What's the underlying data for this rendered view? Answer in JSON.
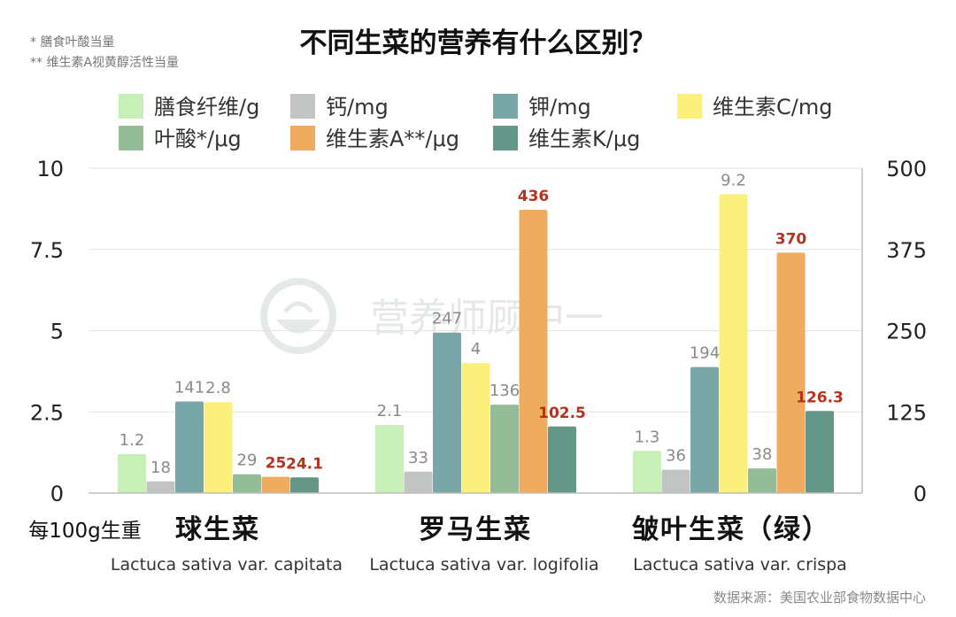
{
  "notes": [
    "* 膳食叶酸当量",
    "** 维生素A视黄醇活性当量"
  ],
  "title": "不同生菜的营养有什么区别？",
  "per_unit_label": "每100g生重",
  "source": "数据来源：美国农业部食物数据中心",
  "watermark": "营养师顾中一",
  "chart_data": {
    "type": "bar",
    "title": "不同生菜的营养有什么区别？",
    "categories": [
      "球生菜",
      "罗马生菜",
      "皱叶生菜（绿）"
    ],
    "category_subtitles": [
      "Lactuca sativa var. capitata",
      "Lactuca sativa var. logifolia",
      "Lactuca sativa var. crispa"
    ],
    "y_left": {
      "ylim": [
        0,
        10
      ],
      "ticks": [
        "0",
        "2.5",
        "5",
        "7.5",
        "10"
      ]
    },
    "y_right": {
      "ylim": [
        0,
        500
      ],
      "ticks": [
        "0",
        "125",
        "250",
        "375",
        "500"
      ]
    },
    "grid": true,
    "legend_position": "top",
    "series": [
      {
        "name": "膳食纤维/g",
        "axis": "left",
        "color": "#c8efb8",
        "label_color": "#8a8a8a",
        "values": [
          1.2,
          2.1,
          1.3
        ],
        "labels": [
          "1.2",
          "2.1",
          "1.3"
        ]
      },
      {
        "name": "钙/mg",
        "axis": "right",
        "color": "#c2c4c4",
        "label_color": "#8a8a8a",
        "values": [
          18,
          33,
          36
        ],
        "labels": [
          "18",
          "33",
          "36"
        ]
      },
      {
        "name": "钾/mg",
        "axis": "right",
        "color": "#79a7a7",
        "label_color": "#8a8a8a",
        "values": [
          141,
          247,
          194
        ],
        "labels": [
          "141",
          "247",
          "194"
        ]
      },
      {
        "name": "维生素C/mg",
        "axis": "left",
        "color": "#fbf07c",
        "label_color": "#8a8a8a",
        "values": [
          2.8,
          4,
          9.2
        ],
        "labels": [
          "2.8",
          "4",
          "9.2"
        ]
      },
      {
        "name": "叶酸*/μg",
        "axis": "right",
        "color": "#93bc97",
        "label_color": "#8a8a8a",
        "values": [
          29,
          136,
          38
        ],
        "labels": [
          "29",
          "136",
          "38"
        ]
      },
      {
        "name": "维生素A**/μg",
        "axis": "right",
        "color": "#efac60",
        "label_color": "#b5321e",
        "values": [
          25,
          436,
          370
        ],
        "labels": [
          "25",
          "436",
          "370"
        ]
      },
      {
        "name": "维生素K/μg",
        "axis": "right",
        "color": "#649787",
        "label_color": "#b5321e",
        "values": [
          24.1,
          102.5,
          126.3
        ],
        "labels": [
          "24.1",
          "102.5",
          "126.3"
        ]
      }
    ]
  }
}
